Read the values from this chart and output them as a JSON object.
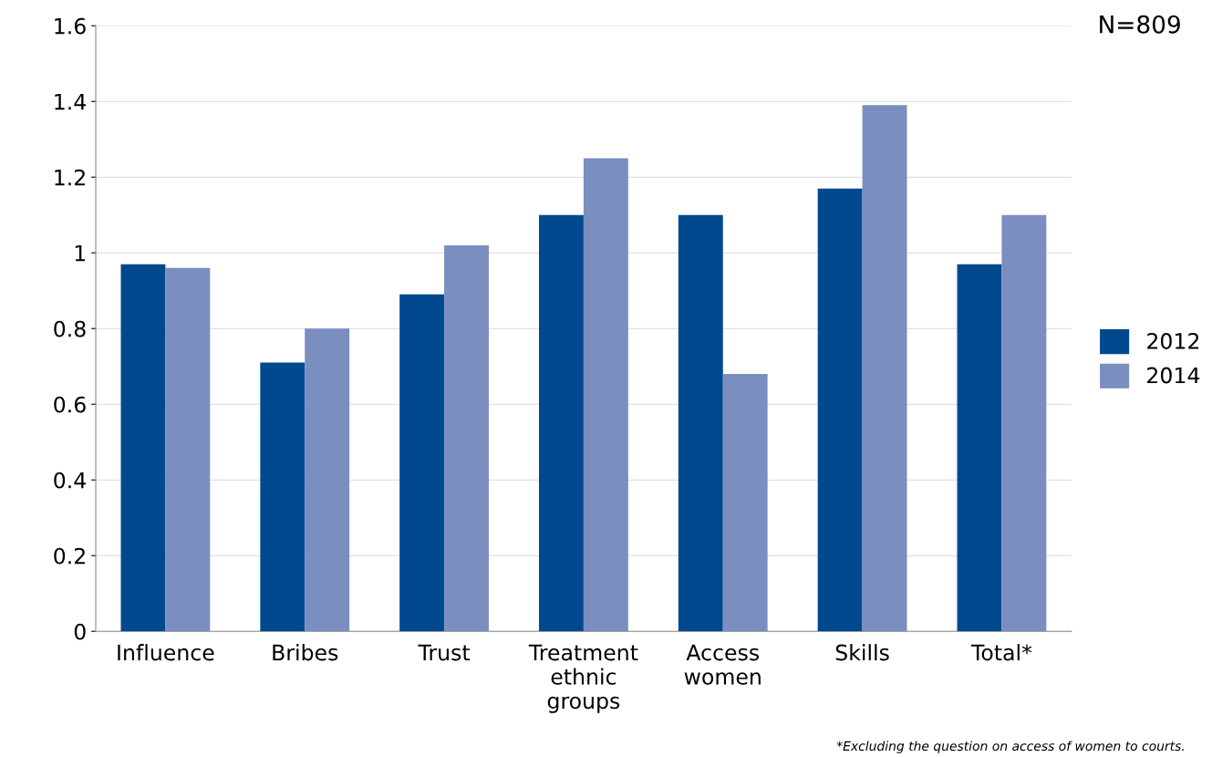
{
  "chart_data": {
    "type": "bar",
    "categories": [
      "Influence",
      "Bribes",
      "Trust",
      "Treatment\nethnic\ngroups",
      "Access\nwomen",
      "Skills",
      "Total*"
    ],
    "series": [
      {
        "name": "2012",
        "color": "#00498f",
        "values": [
          0.97,
          0.71,
          0.89,
          1.1,
          1.1,
          1.17,
          0.97
        ]
      },
      {
        "name": "2014",
        "color": "#7a8ec0",
        "values": [
          0.96,
          0.8,
          1.02,
          1.25,
          0.68,
          1.39,
          1.1
        ]
      }
    ],
    "ylim": [
      0,
      1.6
    ],
    "yticks": [
      0,
      0.2,
      0.4,
      0.6,
      0.8,
      {
        "value": 1,
        "label": "1"
      },
      1.2,
      1.4,
      1.6
    ],
    "grid": "y",
    "legend": "right",
    "annotations": [
      "N=809",
      "*Excluding the question on access of women to courts."
    ]
  }
}
